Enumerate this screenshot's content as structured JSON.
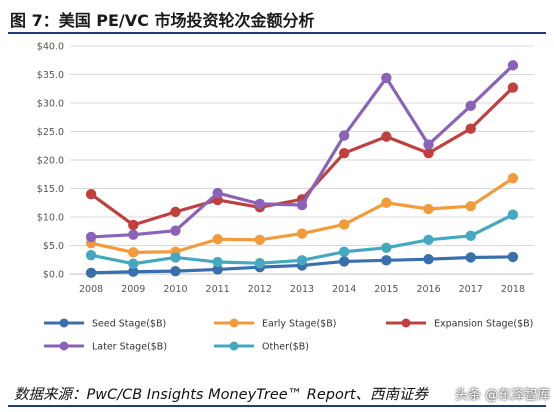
{
  "title": "图 7：美国 PE/VC 市场投资轮次金额分析",
  "source": "数据来源：PwC/CB Insights MoneyTree™ Report、西南证券",
  "watermark": "头条 @东泽智库",
  "chart_data": {
    "type": "line",
    "x": [
      "2008",
      "2009",
      "2010",
      "2011",
      "2012",
      "2013",
      "2014",
      "2015",
      "2016",
      "2017",
      "2018"
    ],
    "ylim": [
      0,
      40
    ],
    "yticks": [
      "$0.0",
      "$5.0",
      "$10.0",
      "$15.0",
      "$20.0",
      "$25.0",
      "$30.0",
      "$35.0",
      "$40.0"
    ],
    "grid": true,
    "legend_position": "bottom",
    "series": [
      {
        "name": "Seed Stage($B)",
        "color": "#3a6fae",
        "values": [
          0.2,
          0.4,
          0.5,
          0.8,
          1.2,
          1.5,
          2.2,
          2.4,
          2.6,
          2.9,
          3.0
        ]
      },
      {
        "name": "Early Stage($B)",
        "color": "#f39a3a",
        "values": [
          5.4,
          3.8,
          3.9,
          6.1,
          6.0,
          7.1,
          8.7,
          12.5,
          11.4,
          11.9,
          16.8
        ]
      },
      {
        "name": "Expansion Stage($B)",
        "color": "#c0403f",
        "values": [
          14.0,
          8.6,
          10.9,
          13.0,
          11.7,
          13.1,
          21.2,
          24.1,
          21.2,
          25.5,
          32.7
        ]
      },
      {
        "name": "Later Stage($B)",
        "color": "#8a63b8",
        "values": [
          6.5,
          6.9,
          7.6,
          14.2,
          12.3,
          12.1,
          24.3,
          34.4,
          22.7,
          29.5,
          36.6
        ]
      },
      {
        "name": "Other($B)",
        "color": "#44a9c0",
        "values": [
          3.3,
          1.8,
          2.9,
          2.1,
          1.9,
          2.4,
          3.9,
          4.6,
          6.0,
          6.7,
          10.4
        ]
      }
    ]
  }
}
